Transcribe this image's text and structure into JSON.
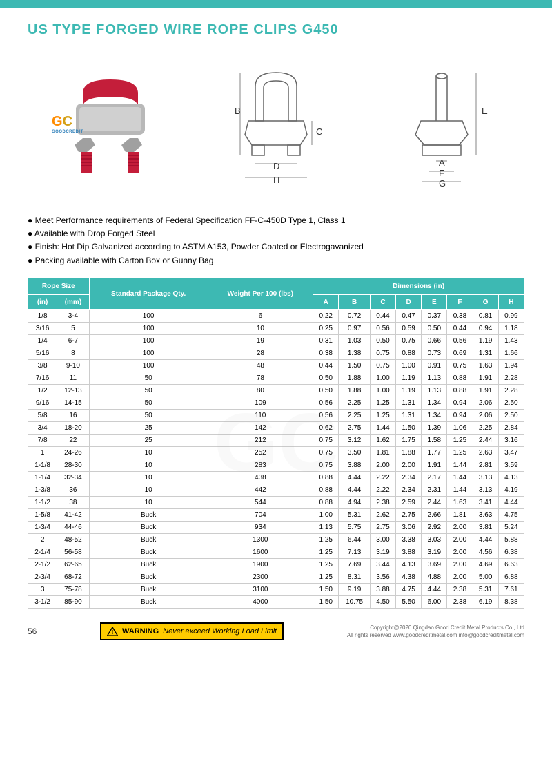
{
  "title": "US TYPE FORGED WIRE ROPE CLIPS G450",
  "page_number": "56",
  "logo": {
    "g": "G",
    "c": "C",
    "sub": "GOODCREDIT"
  },
  "notes": [
    "Meet Performance requirements of Federal Specification FF-C-450D Type 1, Class 1",
    "Available with Drop Forged Steel",
    "Finish: Hot Dip Galvanized according to ASTM A153, Powder Coated or Electrogavanized",
    "Packing available with Carton Box or Gunny Bag"
  ],
  "table": {
    "header_groups": [
      {
        "label": "Rope Size",
        "span": 2
      },
      {
        "label": "Standard Package Qty.",
        "span": 1,
        "rowspan": 2
      },
      {
        "label": "Weight Per 100 (lbs)",
        "span": 1,
        "rowspan": 2
      },
      {
        "label": "Dimensions\n(in)",
        "span": 8
      }
    ],
    "sub_headers": [
      "(in)",
      "(mm)",
      "A",
      "B",
      "C",
      "D",
      "E",
      "F",
      "G",
      "H"
    ],
    "rows": [
      [
        "1/8",
        "3-4",
        "100",
        "6",
        "0.22",
        "0.72",
        "0.44",
        "0.47",
        "0.37",
        "0.38",
        "0.81",
        "0.99"
      ],
      [
        "3/16",
        "5",
        "100",
        "10",
        "0.25",
        "0.97",
        "0.56",
        "0.59",
        "0.50",
        "0.44",
        "0.94",
        "1.18"
      ],
      [
        "1/4",
        "6-7",
        "100",
        "19",
        "0.31",
        "1.03",
        "0.50",
        "0.75",
        "0.66",
        "0.56",
        "1.19",
        "1.43"
      ],
      [
        "5/16",
        "8",
        "100",
        "28",
        "0.38",
        "1.38",
        "0.75",
        "0.88",
        "0.73",
        "0.69",
        "1.31",
        "1.66"
      ],
      [
        "3/8",
        "9-10",
        "100",
        "48",
        "0.44",
        "1.50",
        "0.75",
        "1.00",
        "0.91",
        "0.75",
        "1.63",
        "1.94"
      ],
      [
        "7/16",
        "11",
        "50",
        "78",
        "0.50",
        "1.88",
        "1.00",
        "1.19",
        "1.13",
        "0.88",
        "1.91",
        "2.28"
      ],
      [
        "1/2",
        "12-13",
        "50",
        "80",
        "0.50",
        "1.88",
        "1.00",
        "1.19",
        "1.13",
        "0.88",
        "1.91",
        "2.28"
      ],
      [
        "9/16",
        "14-15",
        "50",
        "109",
        "0.56",
        "2.25",
        "1.25",
        "1.31",
        "1.34",
        "0.94",
        "2.06",
        "2.50"
      ],
      [
        "5/8",
        "16",
        "50",
        "110",
        "0.56",
        "2.25",
        "1.25",
        "1.31",
        "1.34",
        "0.94",
        "2.06",
        "2.50"
      ],
      [
        "3/4",
        "18-20",
        "25",
        "142",
        "0.62",
        "2.75",
        "1.44",
        "1.50",
        "1.39",
        "1.06",
        "2.25",
        "2.84"
      ],
      [
        "7/8",
        "22",
        "25",
        "212",
        "0.75",
        "3.12",
        "1.62",
        "1.75",
        "1.58",
        "1.25",
        "2.44",
        "3.16"
      ],
      [
        "1",
        "24-26",
        "10",
        "252",
        "0.75",
        "3.50",
        "1.81",
        "1.88",
        "1.77",
        "1.25",
        "2.63",
        "3.47"
      ],
      [
        "1-1/8",
        "28-30",
        "10",
        "283",
        "0.75",
        "3.88",
        "2.00",
        "2.00",
        "1.91",
        "1.44",
        "2.81",
        "3.59"
      ],
      [
        "1-1/4",
        "32-34",
        "10",
        "438",
        "0.88",
        "4.44",
        "2.22",
        "2.34",
        "2.17",
        "1.44",
        "3.13",
        "4.13"
      ],
      [
        "1-3/8",
        "36",
        "10",
        "442",
        "0.88",
        "4.44",
        "2.22",
        "2.34",
        "2.31",
        "1.44",
        "3.13",
        "4.19"
      ],
      [
        "1-1/2",
        "38",
        "10",
        "544",
        "0.88",
        "4.94",
        "2.38",
        "2.59",
        "2.44",
        "1.63",
        "3.41",
        "4.44"
      ],
      [
        "1-5/8",
        "41-42",
        "Buck",
        "704",
        "1.00",
        "5.31",
        "2.62",
        "2.75",
        "2.66",
        "1.81",
        "3.63",
        "4.75"
      ],
      [
        "1-3/4",
        "44-46",
        "Buck",
        "934",
        "1.13",
        "5.75",
        "2.75",
        "3.06",
        "2.92",
        "2.00",
        "3.81",
        "5.24"
      ],
      [
        "2",
        "48-52",
        "Buck",
        "1300",
        "1.25",
        "6.44",
        "3.00",
        "3.38",
        "3.03",
        "2.00",
        "4.44",
        "5.88"
      ],
      [
        "2-1/4",
        "56-58",
        "Buck",
        "1600",
        "1.25",
        "7.13",
        "3.19",
        "3.88",
        "3.19",
        "2.00",
        "4.56",
        "6.38"
      ],
      [
        "2-1/2",
        "62-65",
        "Buck",
        "1900",
        "1.25",
        "7.69",
        "3.44",
        "4.13",
        "3.69",
        "2.00",
        "4.69",
        "6.63"
      ],
      [
        "2-3/4",
        "68-72",
        "Buck",
        "2300",
        "1.25",
        "8.31",
        "3.56",
        "4.38",
        "4.88",
        "2.00",
        "5.00",
        "6.88"
      ],
      [
        "3",
        "75-78",
        "Buck",
        "3100",
        "1.50",
        "9.19",
        "3.88",
        "4.75",
        "4.44",
        "2.38",
        "5.31",
        "7.61"
      ],
      [
        "3-1/2",
        "85-90",
        "Buck",
        "4000",
        "1.50",
        "10.75",
        "4.50",
        "5.50",
        "6.00",
        "2.38",
        "6.19",
        "8.38"
      ]
    ]
  },
  "warning": {
    "label": "WARNING",
    "text": "Never exceed Working Load Limit"
  },
  "copyright": {
    "line1": "Copyright@2020 Qingdao Good Credit Metal Products Co., Ltd",
    "line2": "All rights reserved   www.goodcreditmetal.com   info@goodcreditmetal.com"
  },
  "dimension_labels": [
    "A",
    "B",
    "C",
    "D",
    "E",
    "F",
    "G",
    "H"
  ],
  "colors": {
    "accent": "#3db9b3",
    "warning_bg": "#ffcc00",
    "u_bolt": "#c41e3a",
    "saddle": "#c0c0c0"
  }
}
